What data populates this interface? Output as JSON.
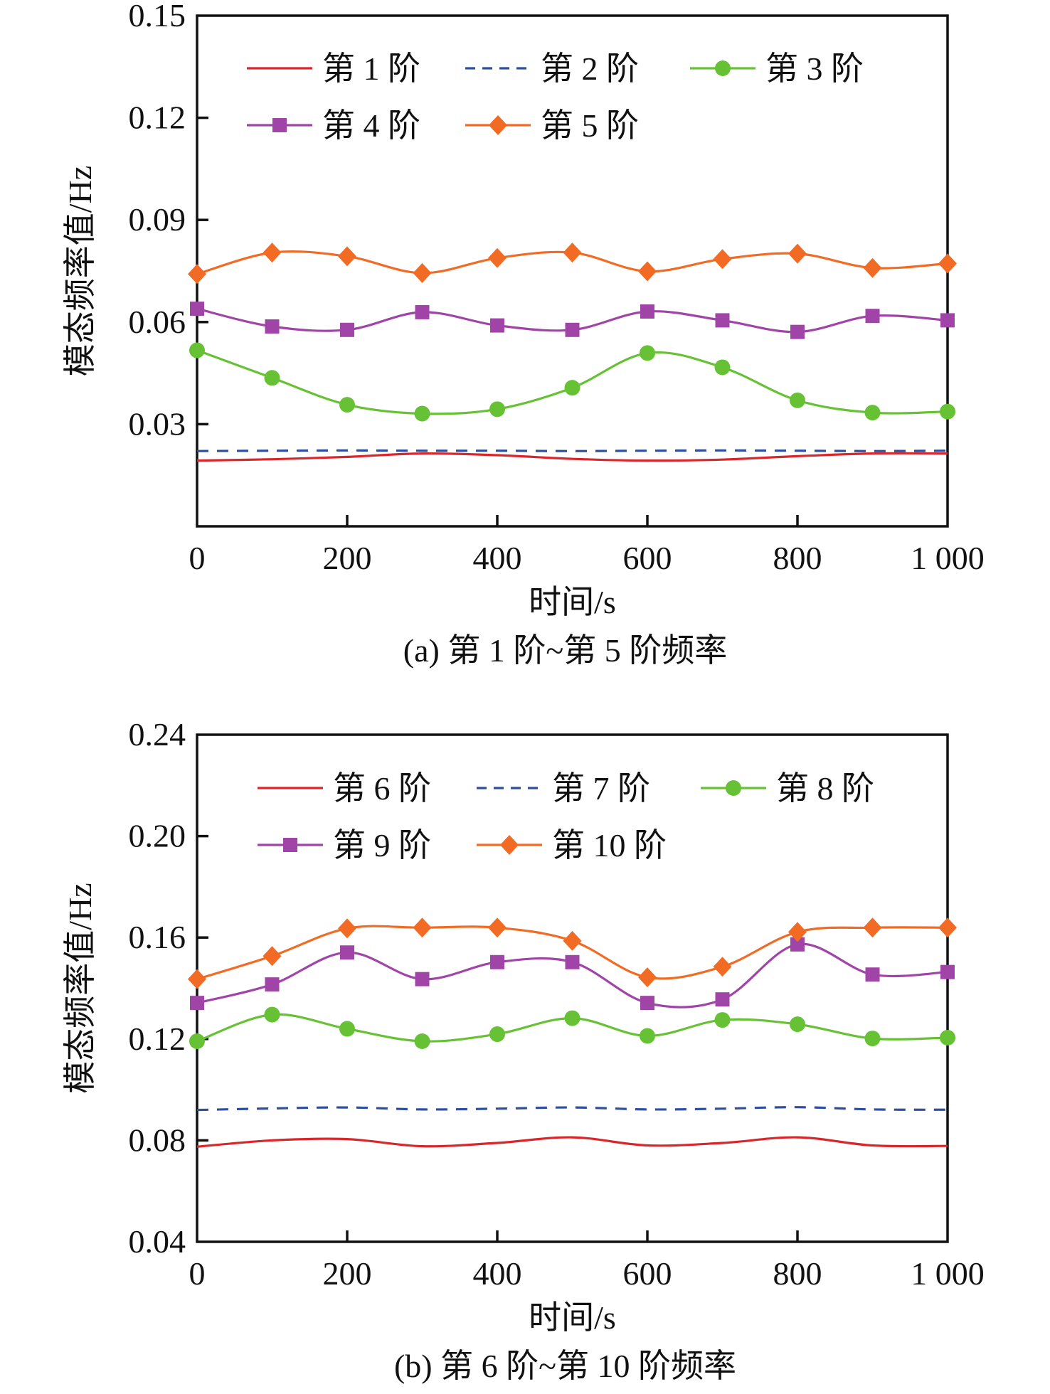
{
  "chart_data": [
    {
      "type": "line",
      "panel": "a",
      "caption": "(a) 第 1 阶~第 5 阶频率",
      "xlabel": "时间/s",
      "ylabel": "模态频率值/Hz",
      "xlim": [
        0,
        1000
      ],
      "ylim": [
        0,
        0.15
      ],
      "xticks": [
        0,
        200,
        400,
        600,
        800,
        1000
      ],
      "xtick_labels": [
        "0",
        "200",
        "400",
        "600",
        "800",
        "1 000"
      ],
      "yticks": [
        0.03,
        0.06,
        0.09,
        0.12,
        0.15
      ],
      "ytick_labels": [
        "0.03",
        "0.06",
        "0.09",
        "0.12",
        "0.15"
      ],
      "grid": false,
      "legend_position": "top",
      "x": [
        0,
        100,
        200,
        300,
        400,
        500,
        600,
        700,
        800,
        900,
        1000
      ],
      "series": [
        {
          "name": "第 1 阶",
          "color": "#d9262b",
          "style": "solid",
          "marker": "none",
          "values": [
            0.0193,
            0.0197,
            0.0204,
            0.0214,
            0.0209,
            0.0198,
            0.0193,
            0.0196,
            0.0206,
            0.0214,
            0.0214
          ]
        },
        {
          "name": "第 2 阶",
          "color": "#2e4e9e",
          "style": "dashed",
          "marker": "none",
          "values": [
            0.0221,
            0.0222,
            0.0223,
            0.0222,
            0.0222,
            0.0221,
            0.0222,
            0.0223,
            0.0222,
            0.0221,
            0.0222
          ]
        },
        {
          "name": "第 3 阶",
          "color": "#66c234",
          "style": "solid",
          "marker": "circle",
          "values": [
            0.0517,
            0.0436,
            0.0357,
            0.0331,
            0.0344,
            0.0407,
            0.0509,
            0.0467,
            0.037,
            0.0334,
            0.0337
          ]
        },
        {
          "name": "第 4 阶",
          "color": "#a044a8",
          "style": "solid",
          "marker": "square",
          "values": [
            0.0639,
            0.0587,
            0.0577,
            0.0629,
            0.059,
            0.0577,
            0.0631,
            0.0605,
            0.0571,
            0.0618,
            0.0605
          ]
        },
        {
          "name": "第 5 阶",
          "color": "#f26b24",
          "style": "solid",
          "marker": "diamond",
          "values": [
            0.0741,
            0.0804,
            0.0793,
            0.0744,
            0.0788,
            0.0804,
            0.0749,
            0.0785,
            0.0801,
            0.0759,
            0.0772
          ]
        }
      ]
    },
    {
      "type": "line",
      "panel": "b",
      "caption": "(b) 第 6 阶~第 10 阶频率",
      "xlabel": "时间/s",
      "ylabel": "模态频率值/Hz",
      "xlim": [
        0,
        1000
      ],
      "ylim": [
        0.04,
        0.24
      ],
      "xticks": [
        0,
        200,
        400,
        600,
        800,
        1000
      ],
      "xtick_labels": [
        "0",
        "200",
        "400",
        "600",
        "800",
        "1 000"
      ],
      "yticks": [
        0.04,
        0.08,
        0.12,
        0.16,
        0.2,
        0.24
      ],
      "ytick_labels": [
        "0.04",
        "0.08",
        "0.12",
        "0.16",
        "0.20",
        "0.24"
      ],
      "grid": false,
      "legend_position": "top",
      "x": [
        0,
        100,
        200,
        300,
        400,
        500,
        600,
        700,
        800,
        900,
        1000
      ],
      "series": [
        {
          "name": "第 6 阶",
          "color": "#d9262b",
          "style": "solid",
          "marker": "none",
          "values": [
            0.0775,
            0.08,
            0.0805,
            0.0777,
            0.079,
            0.0812,
            0.078,
            0.079,
            0.0812,
            0.078,
            0.0778
          ]
        },
        {
          "name": "第 7 阶",
          "color": "#2e4e9e",
          "style": "dashed",
          "marker": "none",
          "values": [
            0.092,
            0.0926,
            0.093,
            0.0922,
            0.0925,
            0.093,
            0.0922,
            0.0925,
            0.0931,
            0.0922,
            0.0921
          ]
        },
        {
          "name": "第 8 阶",
          "color": "#66c234",
          "style": "solid",
          "marker": "circle",
          "values": [
            0.1191,
            0.1296,
            0.124,
            0.1191,
            0.1219,
            0.1282,
            0.1212,
            0.1275,
            0.1258,
            0.1202,
            0.1205
          ]
        },
        {
          "name": "第 9 阶",
          "color": "#a044a8",
          "style": "solid",
          "marker": "square",
          "values": [
            0.1342,
            0.1415,
            0.1541,
            0.1436,
            0.1503,
            0.1503,
            0.1342,
            0.1356,
            0.1573,
            0.1454,
            0.1464
          ]
        },
        {
          "name": "第 10 阶",
          "color": "#f26b24",
          "style": "solid",
          "marker": "diamond",
          "values": [
            0.1436,
            0.1527,
            0.1636,
            0.1639,
            0.1639,
            0.1587,
            0.1443,
            0.1485,
            0.1622,
            0.1639,
            0.1639
          ]
        }
      ]
    }
  ]
}
